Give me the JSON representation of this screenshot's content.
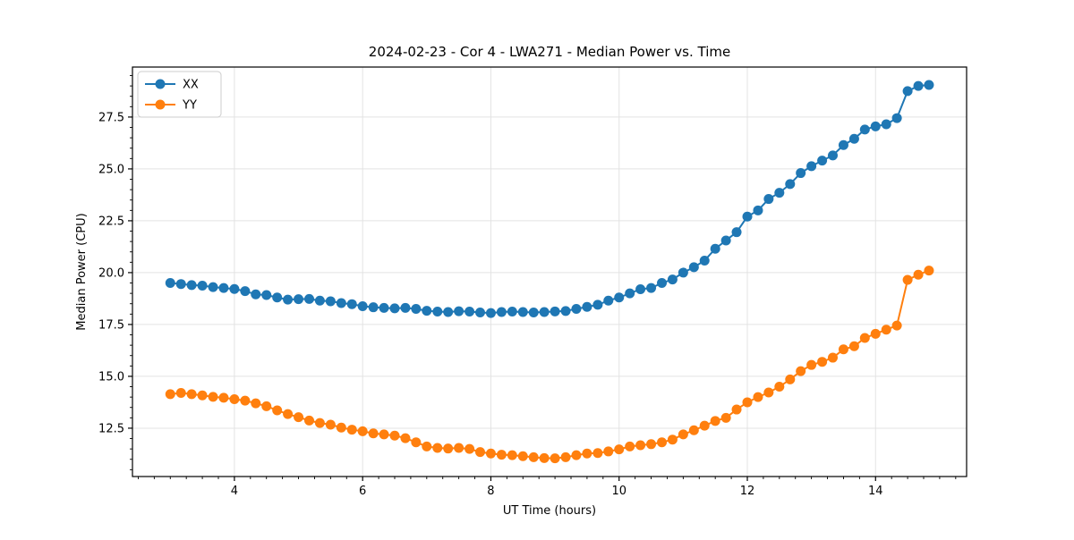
{
  "figure": {
    "background": "#ffffff",
    "grid_color": "#e3e3e3",
    "spine_color": "#000000",
    "legend_border_color": "#cccccc"
  },
  "chart_data": {
    "type": "line",
    "title": "2024-02-23 - Cor 4 - LWA271 - Median Power vs. Time",
    "xlabel": "UT Time (hours)",
    "ylabel": "Median Power (CPU)",
    "xlim": [
      2.41,
      15.42
    ],
    "ylim": [
      10.17,
      29.91
    ],
    "x_major_ticks": [
      4,
      6,
      8,
      10,
      12,
      14
    ],
    "y_major_ticks": [
      12.5,
      15.0,
      17.5,
      20.0,
      22.5,
      25.0,
      27.5
    ],
    "x_minor_step": 0.25,
    "y_minor_step": 0.5,
    "grid": "major",
    "legend_position": "upper-left",
    "marker": "circle",
    "x": [
      3.0,
      3.167,
      3.333,
      3.5,
      3.667,
      3.833,
      4.0,
      4.167,
      4.333,
      4.5,
      4.667,
      4.833,
      5.0,
      5.167,
      5.333,
      5.5,
      5.667,
      5.833,
      6.0,
      6.167,
      6.333,
      6.5,
      6.667,
      6.833,
      7.0,
      7.167,
      7.333,
      7.5,
      7.667,
      7.833,
      8.0,
      8.167,
      8.333,
      8.5,
      8.667,
      8.833,
      9.0,
      9.167,
      9.333,
      9.5,
      9.667,
      9.833,
      10.0,
      10.167,
      10.333,
      10.5,
      10.667,
      10.833,
      11.0,
      11.167,
      11.333,
      11.5,
      11.667,
      11.833,
      12.0,
      12.167,
      12.333,
      12.5,
      12.667,
      12.833,
      13.0,
      13.167,
      13.333,
      13.5,
      13.667,
      13.833,
      14.0,
      14.167,
      14.333,
      14.5,
      14.667,
      14.833
    ],
    "series": [
      {
        "name": "XX",
        "color": "#1f77b4",
        "values": [
          19.5,
          19.45,
          19.4,
          19.37,
          19.3,
          19.26,
          19.21,
          19.11,
          18.95,
          18.92,
          18.8,
          18.7,
          18.72,
          18.73,
          18.65,
          18.62,
          18.53,
          18.48,
          18.38,
          18.33,
          18.3,
          18.28,
          18.3,
          18.25,
          18.16,
          18.12,
          18.1,
          18.14,
          18.12,
          18.08,
          18.05,
          18.1,
          18.12,
          18.1,
          18.08,
          18.1,
          18.13,
          18.15,
          18.25,
          18.35,
          18.45,
          18.65,
          18.8,
          19.0,
          19.2,
          19.26,
          19.5,
          19.67,
          20.0,
          20.26,
          20.58,
          21.15,
          21.55,
          21.95,
          22.7,
          23.0,
          23.55,
          23.85,
          24.27,
          24.8,
          25.13,
          25.4,
          25.65,
          26.15,
          26.45,
          26.9,
          27.05,
          27.15,
          27.45,
          28.75,
          29.0,
          29.05
        ]
      },
      {
        "name": "YY",
        "color": "#ff7f0e",
        "values": [
          14.14,
          14.2,
          14.14,
          14.08,
          14.01,
          13.97,
          13.9,
          13.83,
          13.7,
          13.56,
          13.36,
          13.18,
          13.03,
          12.87,
          12.75,
          12.67,
          12.53,
          12.43,
          12.35,
          12.25,
          12.2,
          12.14,
          12.02,
          11.82,
          11.62,
          11.55,
          11.52,
          11.55,
          11.5,
          11.35,
          11.28,
          11.22,
          11.2,
          11.15,
          11.1,
          11.06,
          11.05,
          11.1,
          11.2,
          11.28,
          11.3,
          11.38,
          11.48,
          11.62,
          11.68,
          11.73,
          11.82,
          11.95,
          12.2,
          12.4,
          12.62,
          12.85,
          13.0,
          13.4,
          13.75,
          14.0,
          14.22,
          14.5,
          14.85,
          15.25,
          15.55,
          15.7,
          15.9,
          16.3,
          16.45,
          16.85,
          17.05,
          17.25,
          17.45,
          19.65,
          19.9,
          20.1
        ]
      }
    ]
  }
}
